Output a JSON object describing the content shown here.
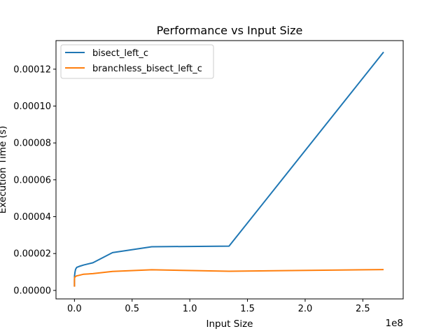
{
  "chart_data": {
    "type": "line",
    "title": "Performance vs Input Size",
    "xlabel": "Input Size",
    "ylabel": "Execution Time (s)",
    "x_offset_text": "1e8",
    "xlim": [
      -16000000,
      285000000
    ],
    "ylim": [
      -4.6e-06,
      0.0001355
    ],
    "xticks": [
      0,
      50000000,
      100000000,
      150000000,
      200000000,
      250000000
    ],
    "xtick_labels": [
      "0.0",
      "0.5",
      "1.0",
      "1.5",
      "2.0",
      "2.5"
    ],
    "yticks": [
      0,
      2e-05,
      4e-05,
      6e-05,
      8e-05,
      0.0001,
      0.00012
    ],
    "ytick_labels": [
      "0.00000",
      "0.00002",
      "0.00004",
      "0.00006",
      "0.00008",
      "0.00010",
      "0.00012"
    ],
    "grid": false,
    "legend_position": "top-left",
    "series": [
      {
        "name": "bisect_left_c",
        "color": "#1f77b4",
        "points": [
          [
            10,
            2.2e-06
          ],
          [
            100,
            3e-06
          ],
          [
            1000,
            4.5e-06
          ],
          [
            10000,
            6e-06
          ],
          [
            100000,
            8e-06
          ],
          [
            500000,
            1e-05
          ],
          [
            1000000,
            1.15e-05
          ],
          [
            2000000,
            1.25e-05
          ],
          [
            4000000,
            1.3e-05
          ],
          [
            8000000,
            1.38e-05
          ],
          [
            16000000,
            1.5e-05
          ],
          [
            33000000,
            2.05e-05
          ],
          [
            67000000,
            2.37e-05
          ],
          [
            134000000,
            2.4e-05
          ],
          [
            268000000,
            0.0001293
          ]
        ]
      },
      {
        "name": "branchless_bisect_left_c",
        "color": "#ff7f0e",
        "points": [
          [
            10,
            2e-06
          ],
          [
            100,
            2.8e-06
          ],
          [
            1000,
            4e-06
          ],
          [
            10000,
            5.5e-06
          ],
          [
            100000,
            6.8e-06
          ],
          [
            500000,
            7.3e-06
          ],
          [
            1000000,
            7.6e-06
          ],
          [
            2000000,
            7.9e-06
          ],
          [
            4000000,
            8.2e-06
          ],
          [
            8000000,
            8.8e-06
          ],
          [
            16000000,
            9.1e-06
          ],
          [
            33000000,
            1.03e-05
          ],
          [
            67000000,
            1.12e-05
          ],
          [
            134000000,
            1.04e-05
          ],
          [
            268000000,
            1.13e-05
          ]
        ]
      }
    ]
  }
}
